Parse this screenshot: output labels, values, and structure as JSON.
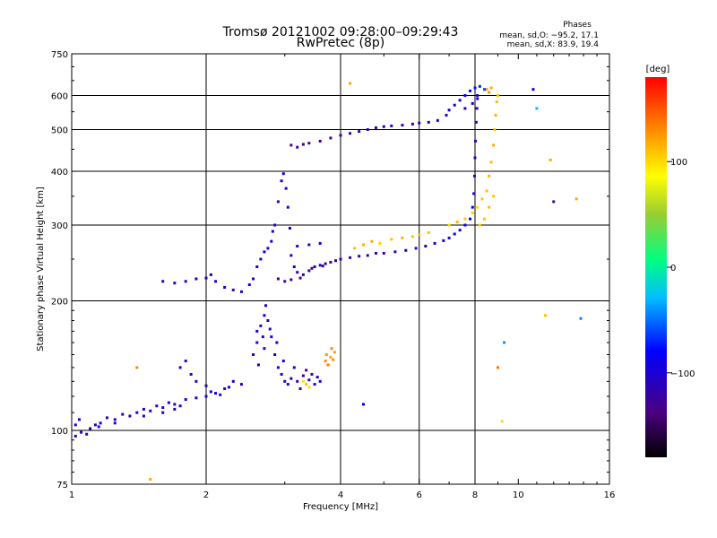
{
  "chart_data": {
    "type": "scatter",
    "title": "Tromsø 20121002 09:28:00–09:29:43",
    "subtitle": "RwPretec (8p)",
    "xlabel": "Frequency [MHz]",
    "ylabel": "Stationary phase Virtual Height [km]",
    "x_scale": "log",
    "y_scale": "log",
    "xlim": [
      1,
      16
    ],
    "ylim": [
      75,
      750
    ],
    "x_ticks": [
      1,
      2,
      4,
      6,
      8,
      10,
      16
    ],
    "x_tick_labels": [
      "1",
      "2",
      "4",
      "6",
      "8",
      "10",
      "16"
    ],
    "x_gridlines": [
      2,
      4,
      6,
      8
    ],
    "y_ticks": [
      75,
      100,
      200,
      300,
      400,
      500,
      600,
      750
    ],
    "y_tick_labels": [
      "75",
      "100",
      "200",
      "300",
      "400",
      "500",
      "600",
      "750"
    ],
    "y_gridlines": [
      100,
      200,
      300,
      400,
      500,
      600
    ],
    "grid": true,
    "phases_legend": {
      "title": "Phases",
      "line_o": "mean, sd,O: −95.2, 17.1",
      "line_x": "mean, sd,X:  83.9, 19.4"
    },
    "colorbar": {
      "label": "[deg]",
      "range": [
        -180,
        180
      ],
      "ticks": [
        100,
        0,
        -100
      ],
      "tick_labels": [
        "100",
        "0",
        "−100"
      ]
    },
    "series": [
      {
        "points": [
          [
            1.02,
            97,
            -110
          ],
          [
            1.05,
            99,
            -105
          ],
          [
            1.08,
            98,
            -100
          ],
          [
            1.1,
            101,
            -112
          ],
          [
            1.13,
            103,
            -108
          ],
          [
            1.16,
            104,
            -95
          ],
          [
            1.2,
            107,
            -110
          ],
          [
            1.25,
            106,
            -100
          ],
          [
            1.3,
            109,
            -105
          ],
          [
            1.35,
            108,
            -112
          ],
          [
            1.4,
            110,
            -100
          ],
          [
            1.45,
            112,
            -108
          ],
          [
            1.5,
            111,
            -100
          ],
          [
            1.55,
            114,
            -105
          ],
          [
            1.6,
            113,
            -110
          ],
          [
            1.65,
            116,
            -100
          ],
          [
            1.7,
            115,
            -102
          ],
          [
            1.75,
            114,
            -108
          ],
          [
            1.8,
            118,
            -100
          ],
          [
            1.9,
            119,
            -105
          ],
          [
            2.0,
            120,
            -100
          ],
          [
            2.1,
            122,
            -95
          ],
          [
            2.2,
            125,
            -105
          ],
          [
            2.3,
            130,
            -98
          ],
          [
            2.4,
            128,
            -102
          ],
          [
            1.75,
            140,
            -100
          ],
          [
            1.8,
            145,
            -98
          ],
          [
            1.85,
            135,
            -105
          ],
          [
            1.9,
            130,
            -100
          ],
          [
            2.0,
            127,
            -110
          ],
          [
            1.02,
            103,
            -100
          ],
          [
            1.04,
            106,
            -105
          ],
          [
            1.15,
            102,
            -100
          ],
          [
            1.25,
            104,
            -108
          ],
          [
            1.45,
            108,
            -102
          ],
          [
            1.6,
            110,
            -98
          ],
          [
            1.7,
            112,
            -104
          ],
          [
            2.05,
            123,
            -100
          ],
          [
            2.15,
            121,
            -98
          ],
          [
            2.25,
            126,
            -100
          ]
        ]
      },
      {
        "points": [
          [
            2.55,
            150,
            -100
          ],
          [
            2.6,
            160,
            -105
          ],
          [
            2.65,
            175,
            -100
          ],
          [
            2.7,
            185,
            -95
          ],
          [
            2.72,
            195,
            -100
          ],
          [
            2.75,
            180,
            -110
          ],
          [
            2.8,
            165,
            -100
          ],
          [
            2.85,
            150,
            -105
          ],
          [
            2.9,
            140,
            -100
          ],
          [
            2.95,
            135,
            -95
          ],
          [
            3.0,
            130,
            -105
          ],
          [
            3.05,
            128,
            -100
          ],
          [
            3.1,
            132,
            -115
          ],
          [
            3.2,
            130,
            -120
          ],
          [
            3.3,
            134,
            -125
          ],
          [
            3.4,
            131,
            -110
          ],
          [
            3.5,
            128,
            -105
          ],
          [
            3.6,
            130,
            -100
          ],
          [
            2.6,
            170,
            -98
          ],
          [
            2.68,
            165,
            -100
          ],
          [
            2.78,
            172,
            -102
          ],
          [
            2.88,
            160,
            -100
          ],
          [
            2.98,
            145,
            -98
          ],
          [
            3.15,
            140,
            -95
          ],
          [
            3.25,
            125,
            -140
          ],
          [
            3.35,
            138,
            -130
          ],
          [
            3.45,
            135,
            -120
          ],
          [
            3.55,
            133,
            -112
          ],
          [
            2.62,
            142,
            -100
          ],
          [
            2.7,
            155,
            -104
          ]
        ]
      },
      {
        "points": [
          [
            3.7,
            145,
            130
          ],
          [
            3.72,
            150,
            125
          ],
          [
            3.75,
            142,
            135
          ],
          [
            3.8,
            148,
            120
          ],
          [
            3.82,
            155,
            130
          ],
          [
            3.85,
            146,
            128
          ],
          [
            3.88,
            152,
            122
          ],
          [
            3.3,
            130,
            95
          ],
          [
            3.35,
            128,
            110
          ],
          [
            3.4,
            126,
            100
          ]
        ]
      },
      {
        "points": [
          [
            1.6,
            222,
            -100
          ],
          [
            1.7,
            220,
            -105
          ],
          [
            1.8,
            222,
            -100
          ],
          [
            1.9,
            225,
            -98
          ],
          [
            2.0,
            226,
            -105
          ],
          [
            2.05,
            230,
            -100
          ],
          [
            2.1,
            222,
            -98
          ],
          [
            2.2,
            215,
            -100
          ],
          [
            2.3,
            212,
            -105
          ],
          [
            2.4,
            210,
            -98
          ],
          [
            2.5,
            218,
            -100
          ],
          [
            2.55,
            225,
            -102
          ],
          [
            2.6,
            240,
            -100
          ],
          [
            2.65,
            250,
            -95
          ],
          [
            2.7,
            260,
            -100
          ],
          [
            2.8,
            275,
            -105
          ],
          [
            2.85,
            300,
            -100
          ],
          [
            2.9,
            340,
            -98
          ],
          [
            2.95,
            380,
            -100
          ],
          [
            2.98,
            395,
            -105
          ],
          [
            3.02,
            365,
            -100
          ],
          [
            3.05,
            330,
            -98
          ],
          [
            3.08,
            295,
            -100
          ],
          [
            3.1,
            255,
            -105
          ],
          [
            3.15,
            240,
            -110
          ],
          [
            3.2,
            233,
            -115
          ],
          [
            3.3,
            230,
            -120
          ],
          [
            3.4,
            235,
            -118
          ],
          [
            3.5,
            240,
            -122
          ],
          [
            3.6,
            242,
            -125
          ],
          [
            3.7,
            244,
            -125
          ],
          [
            3.8,
            246,
            -120
          ],
          [
            3.9,
            248,
            -118
          ],
          [
            4.0,
            250,
            -120
          ],
          [
            4.2,
            252,
            -118
          ],
          [
            4.4,
            254,
            -115
          ],
          [
            4.6,
            255,
            -118
          ],
          [
            4.8,
            258,
            -120
          ],
          [
            5.0,
            258,
            -115
          ],
          [
            5.3,
            260,
            -118
          ],
          [
            5.6,
            262,
            -112
          ],
          [
            5.9,
            265,
            -115
          ],
          [
            6.2,
            268,
            -110
          ],
          [
            6.5,
            272,
            -108
          ],
          [
            6.8,
            276,
            -100
          ],
          [
            7.0,
            280,
            -95
          ],
          [
            7.2,
            286,
            -90
          ],
          [
            7.4,
            292,
            -85
          ],
          [
            7.6,
            300,
            -80
          ],
          [
            7.8,
            310,
            -85
          ],
          [
            7.9,
            330,
            -90
          ],
          [
            7.95,
            355,
            -100
          ],
          [
            7.98,
            390,
            -105
          ],
          [
            8.0,
            430,
            -110
          ],
          [
            8.02,
            470,
            -112
          ],
          [
            8.05,
            520,
            -115
          ],
          [
            8.08,
            560,
            -112
          ],
          [
            8.1,
            600,
            -110
          ],
          [
            2.9,
            225,
            -130
          ],
          [
            3.0,
            222,
            -125
          ],
          [
            3.1,
            224,
            -130
          ],
          [
            3.25,
            226,
            -135
          ],
          [
            3.45,
            238,
            -125
          ],
          [
            3.65,
            241,
            -118
          ],
          [
            2.75,
            265,
            -100
          ],
          [
            2.82,
            290,
            -98
          ],
          [
            3.2,
            268,
            -100
          ],
          [
            3.4,
            270,
            -98
          ],
          [
            3.6,
            272,
            -100
          ]
        ]
      },
      {
        "points": [
          [
            4.3,
            265,
            110
          ],
          [
            4.5,
            270,
            115
          ],
          [
            4.7,
            275,
            120
          ],
          [
            4.9,
            272,
            105
          ],
          [
            5.2,
            278,
            110
          ],
          [
            5.5,
            280,
            115
          ],
          [
            5.8,
            282,
            108
          ],
          [
            6.0,
            285,
            112
          ],
          [
            6.3,
            288,
            110
          ],
          [
            7.0,
            300,
            100
          ],
          [
            7.3,
            305,
            115
          ],
          [
            7.6,
            310,
            110
          ],
          [
            7.9,
            320,
            105
          ],
          [
            8.1,
            330,
            100
          ],
          [
            8.3,
            345,
            108
          ],
          [
            8.5,
            360,
            110
          ],
          [
            8.6,
            390,
            115
          ],
          [
            8.7,
            420,
            112
          ],
          [
            8.8,
            460,
            118
          ],
          [
            8.85,
            500,
            110
          ],
          [
            8.9,
            540,
            115
          ],
          [
            8.95,
            580,
            112
          ],
          [
            9.0,
            600,
            110
          ],
          [
            8.5,
            620,
            120
          ],
          [
            8.6,
            610,
            125
          ],
          [
            8.7,
            625,
            118
          ],
          [
            8.2,
            300,
            105
          ],
          [
            8.4,
            310,
            110
          ],
          [
            8.6,
            330,
            112
          ],
          [
            8.8,
            350,
            108
          ]
        ]
      },
      {
        "points": [
          [
            3.1,
            460,
            -140
          ],
          [
            3.2,
            455,
            -130
          ],
          [
            3.3,
            462,
            -145
          ],
          [
            3.4,
            465,
            -135
          ],
          [
            3.6,
            470,
            -140
          ],
          [
            3.8,
            478,
            -130
          ],
          [
            4.0,
            485,
            -125
          ],
          [
            4.2,
            490,
            -120
          ],
          [
            4.4,
            495,
            -115
          ],
          [
            4.6,
            500,
            -118
          ],
          [
            4.8,
            505,
            -120
          ],
          [
            5.0,
            508,
            -115
          ],
          [
            5.2,
            510,
            -118
          ],
          [
            5.5,
            512,
            -120
          ],
          [
            5.8,
            515,
            -118
          ],
          [
            6.0,
            518,
            -115
          ],
          [
            6.3,
            520,
            -112
          ],
          [
            6.6,
            525,
            -115
          ],
          [
            6.9,
            540,
            -105
          ],
          [
            7.0,
            555,
            -100
          ],
          [
            7.2,
            570,
            -95
          ],
          [
            7.4,
            585,
            -90
          ],
          [
            7.6,
            600,
            -85
          ],
          [
            7.8,
            615,
            -80
          ],
          [
            8.0,
            625,
            -75
          ],
          [
            8.2,
            630,
            -70
          ],
          [
            8.4,
            620,
            -60
          ],
          [
            7.6,
            560,
            -105
          ],
          [
            7.9,
            575,
            -100
          ],
          [
            8.1,
            590,
            -95
          ]
        ]
      },
      {
        "points": [
          [
            4.2,
            640,
            120
          ],
          [
            10.8,
            620,
            -90
          ],
          [
            11.0,
            560,
            -30
          ],
          [
            11.8,
            425,
            120
          ],
          [
            13.5,
            345,
            120
          ],
          [
            12.0,
            340,
            -130
          ],
          [
            9.3,
            160,
            -40
          ],
          [
            9.0,
            140,
            140
          ],
          [
            9.2,
            105,
            100
          ],
          [
            11.5,
            185,
            110
          ],
          [
            13.8,
            182,
            -45
          ],
          [
            4.5,
            115,
            -80
          ],
          [
            1.5,
            77,
            120
          ],
          [
            1.4,
            140,
            130
          ]
        ]
      }
    ]
  }
}
